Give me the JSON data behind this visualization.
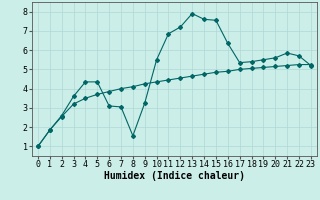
{
  "xlabel": "Humidex (Indice chaleur)",
  "ylabel": "",
  "bg_color": "#cceee8",
  "grid_color": "#b0d8d8",
  "line_color": "#006666",
  "xlim": [
    -0.5,
    23.5
  ],
  "ylim": [
    0.5,
    8.5
  ],
  "xticks": [
    0,
    1,
    2,
    3,
    4,
    5,
    6,
    7,
    8,
    9,
    10,
    11,
    12,
    13,
    14,
    15,
    16,
    17,
    18,
    19,
    20,
    21,
    22,
    23
  ],
  "yticks": [
    1,
    2,
    3,
    4,
    5,
    6,
    7,
    8
  ],
  "line1_x": [
    0,
    1,
    2,
    3,
    4,
    5,
    6,
    7,
    8,
    9,
    10,
    11,
    12,
    13,
    14,
    15,
    16,
    17,
    18,
    19,
    20,
    21,
    22,
    23
  ],
  "line1_y": [
    1.0,
    1.85,
    2.6,
    3.6,
    4.35,
    4.35,
    3.1,
    3.05,
    1.55,
    3.25,
    5.5,
    6.85,
    7.2,
    7.9,
    7.6,
    7.55,
    6.35,
    5.35,
    5.4,
    5.5,
    5.6,
    5.85,
    5.7,
    5.2
  ],
  "line2_x": [
    0,
    1,
    2,
    3,
    4,
    5,
    6,
    7,
    8,
    9,
    10,
    11,
    12,
    13,
    14,
    15,
    16,
    17,
    18,
    19,
    20,
    21,
    22,
    23
  ],
  "line2_y": [
    1.0,
    1.85,
    2.55,
    3.2,
    3.5,
    3.7,
    3.85,
    4.0,
    4.1,
    4.25,
    4.35,
    4.45,
    4.55,
    4.65,
    4.75,
    4.85,
    4.9,
    5.0,
    5.05,
    5.1,
    5.15,
    5.2,
    5.25,
    5.25
  ],
  "xlabel_fontsize": 7,
  "tick_fontsize": 6,
  "marker_size": 2.0,
  "line_width": 0.8
}
